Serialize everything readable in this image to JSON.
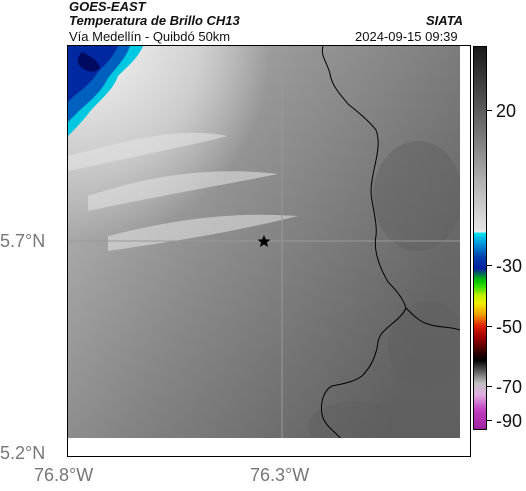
{
  "header": {
    "satellite": "GOES-EAST",
    "product": "Temperatura de Brillo CH13",
    "route": "Vía Medellín - Quibdó 50km",
    "agency": "SIATA",
    "timestamp": "2024-09-15 09:39"
  },
  "map": {
    "marker": "star-marker",
    "background_colors": {
      "warm": "#5a5a5a",
      "mid": "#9a9a9a",
      "cold": "#d8d8d8",
      "coldest_blue": "#0050a0"
    },
    "gridline_color": "#999999",
    "border_line_color": "#000000"
  },
  "axes": {
    "lat_ticks": [
      "5.7°N",
      "5.2°N"
    ],
    "lon_ticks": [
      "76.8°W",
      "76.3°W"
    ]
  },
  "colorbar": {
    "tick_labels": [
      "20",
      "-30",
      "-50",
      "-70",
      "-90"
    ],
    "colors": [
      "#1a1a1a",
      "#e0e0e0",
      "#00c0e0",
      "#0030a0",
      "#00e000",
      "#f0f000",
      "#e00000",
      "#000000",
      "#c040c0"
    ]
  }
}
